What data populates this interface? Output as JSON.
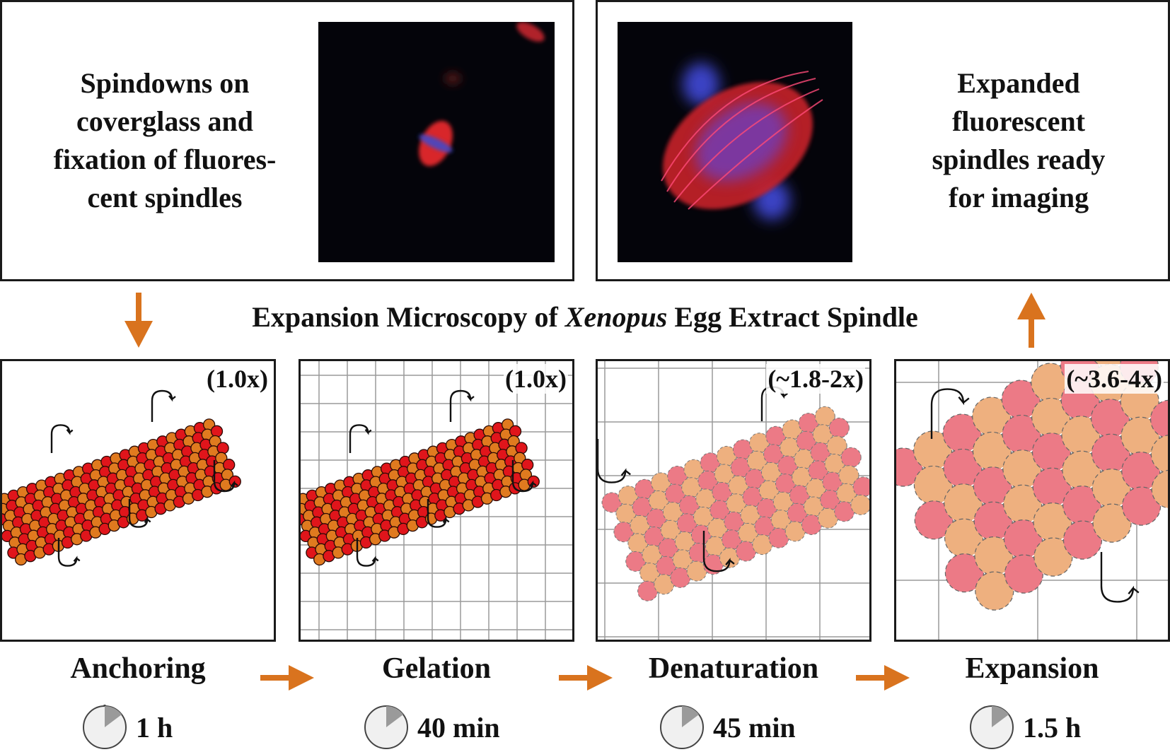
{
  "top_left": {
    "lines": [
      "Spindowns on",
      "coverglass and",
      "fixation of fluores-",
      "cent spindles"
    ]
  },
  "top_right": {
    "lines": [
      "Expanded",
      "fluorescent",
      "spindles ready",
      "for imaging"
    ]
  },
  "title": {
    "prefix": "Expansion Microscopy of ",
    "italic": "Xenopus",
    "suffix": " Egg Extract Spindle"
  },
  "steps": [
    {
      "label": "Anchoring",
      "factor": "(1.0x)",
      "time": "1 h"
    },
    {
      "label": "Gelation",
      "factor": "(1.0x)",
      "time": "40 min"
    },
    {
      "label": "Denaturation",
      "factor": "(~1.8-2x)",
      "time": "45 min"
    },
    {
      "label": "Expansion",
      "factor": "(~3.6-4x)",
      "time": "1.5 h"
    }
  ],
  "colors": {
    "arrow": "#d9731e",
    "bead_red": "#e0151b",
    "bead_orange": "#e07a1f",
    "bead_pink": "#ec7a86",
    "bead_peach": "#eeb07f",
    "grid": "#9a9a9a"
  }
}
